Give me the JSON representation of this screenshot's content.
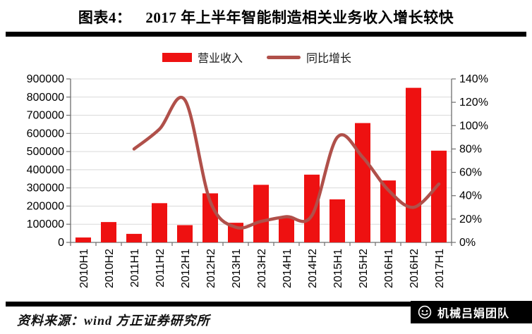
{
  "header": {
    "figure_label": "图表4：",
    "title": "2017 年上半年智能制造相关业务收入增长较快"
  },
  "chart_data": {
    "type": "bar",
    "subtype": "combo-bar-line",
    "categories": [
      "2010H1",
      "2010H2",
      "2011H1",
      "2011H2",
      "2012H1",
      "2012H2",
      "2013H1",
      "2013H2",
      "2014H1",
      "2014H2",
      "2015H1",
      "2015H2",
      "2016H1",
      "2016H2",
      "2017H1"
    ],
    "series": [
      {
        "name": "营业收入",
        "type": "bar",
        "axis": "left",
        "values": [
          27000,
          112000,
          47000,
          216000,
          95000,
          270000,
          108000,
          317000,
          136000,
          373000,
          237000,
          657000,
          341000,
          851000,
          505000
        ]
      },
      {
        "name": "同比增长",
        "type": "line",
        "axis": "right",
        "unit": "%",
        "values": [
          null,
          null,
          80,
          97,
          122,
          35,
          13,
          18,
          22,
          23,
          90,
          73,
          45,
          30,
          50
        ]
      }
    ],
    "left_axis": {
      "min": 0,
      "max": 900000,
      "step": 100000,
      "tick_labels": [
        "0",
        "100000",
        "200000",
        "300000",
        "400000",
        "500000",
        "600000",
        "700000",
        "800000",
        "900000"
      ]
    },
    "right_axis": {
      "min": 0,
      "max": 140,
      "step": 20,
      "tick_labels": [
        "0%",
        "20%",
        "40%",
        "60%",
        "80%",
        "100%",
        "120%",
        "140%"
      ]
    },
    "grid": "horizontal",
    "legend_position": "top",
    "line_smoothing": true,
    "colors": {
      "bar": "#EE1111",
      "line": "#B0504A",
      "grid": "#D9D9D9",
      "axis": "#6e6e6e"
    }
  },
  "footer": {
    "source": "资料来源：wind  方正证券研究所",
    "team_badge": "机械吕娟团队"
  }
}
